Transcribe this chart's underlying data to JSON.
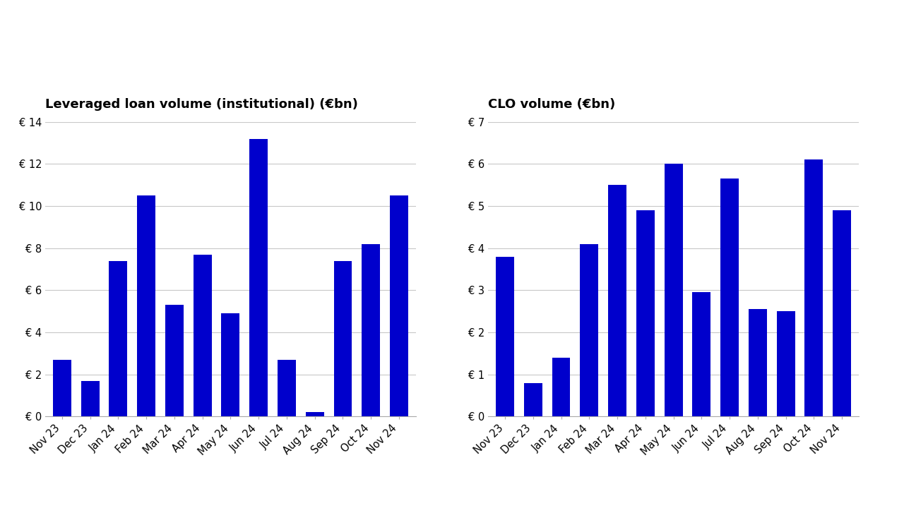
{
  "chart1_title": "Leveraged loan volume (institutional) (€bn)",
  "chart1_categories": [
    "Nov 23",
    "Dec 23",
    "Jan 24",
    "Feb 24",
    "Mar 24",
    "Apr 24",
    "May 24",
    "Jun 24",
    "Jul 24",
    "Aug 24",
    "Sep 24",
    "Oct 24",
    "Nov 24"
  ],
  "chart1_values": [
    2.7,
    1.7,
    7.4,
    10.5,
    5.3,
    7.7,
    4.9,
    13.2,
    2.7,
    0.2,
    7.4,
    8.2,
    10.5
  ],
  "chart1_ylim": [
    0,
    14
  ],
  "chart1_yticks": [
    0,
    2,
    4,
    6,
    8,
    10,
    12,
    14
  ],
  "chart2_title": "CLO volume (€bn)",
  "chart2_categories": [
    "Nov 23",
    "Dec 23",
    "Jan 24",
    "Feb 24",
    "Mar 24",
    "Apr 24",
    "May 24",
    "Jun 24",
    "Jul 24",
    "Aug 24",
    "Sep 24",
    "Oct 24",
    "Nov 24"
  ],
  "chart2_values": [
    3.8,
    0.8,
    1.4,
    4.1,
    5.5,
    4.9,
    6.0,
    2.95,
    5.65,
    2.55,
    2.5,
    6.1,
    4.9
  ],
  "chart2_ylim": [
    0,
    7
  ],
  "chart2_yticks": [
    0,
    1,
    2,
    3,
    4,
    5,
    6,
    7
  ],
  "bar_color": "#0000CC",
  "background_color": "#FFFFFF",
  "grid_color": "#C8C8C8",
  "title_fontsize": 13,
  "tick_fontsize": 10.5
}
